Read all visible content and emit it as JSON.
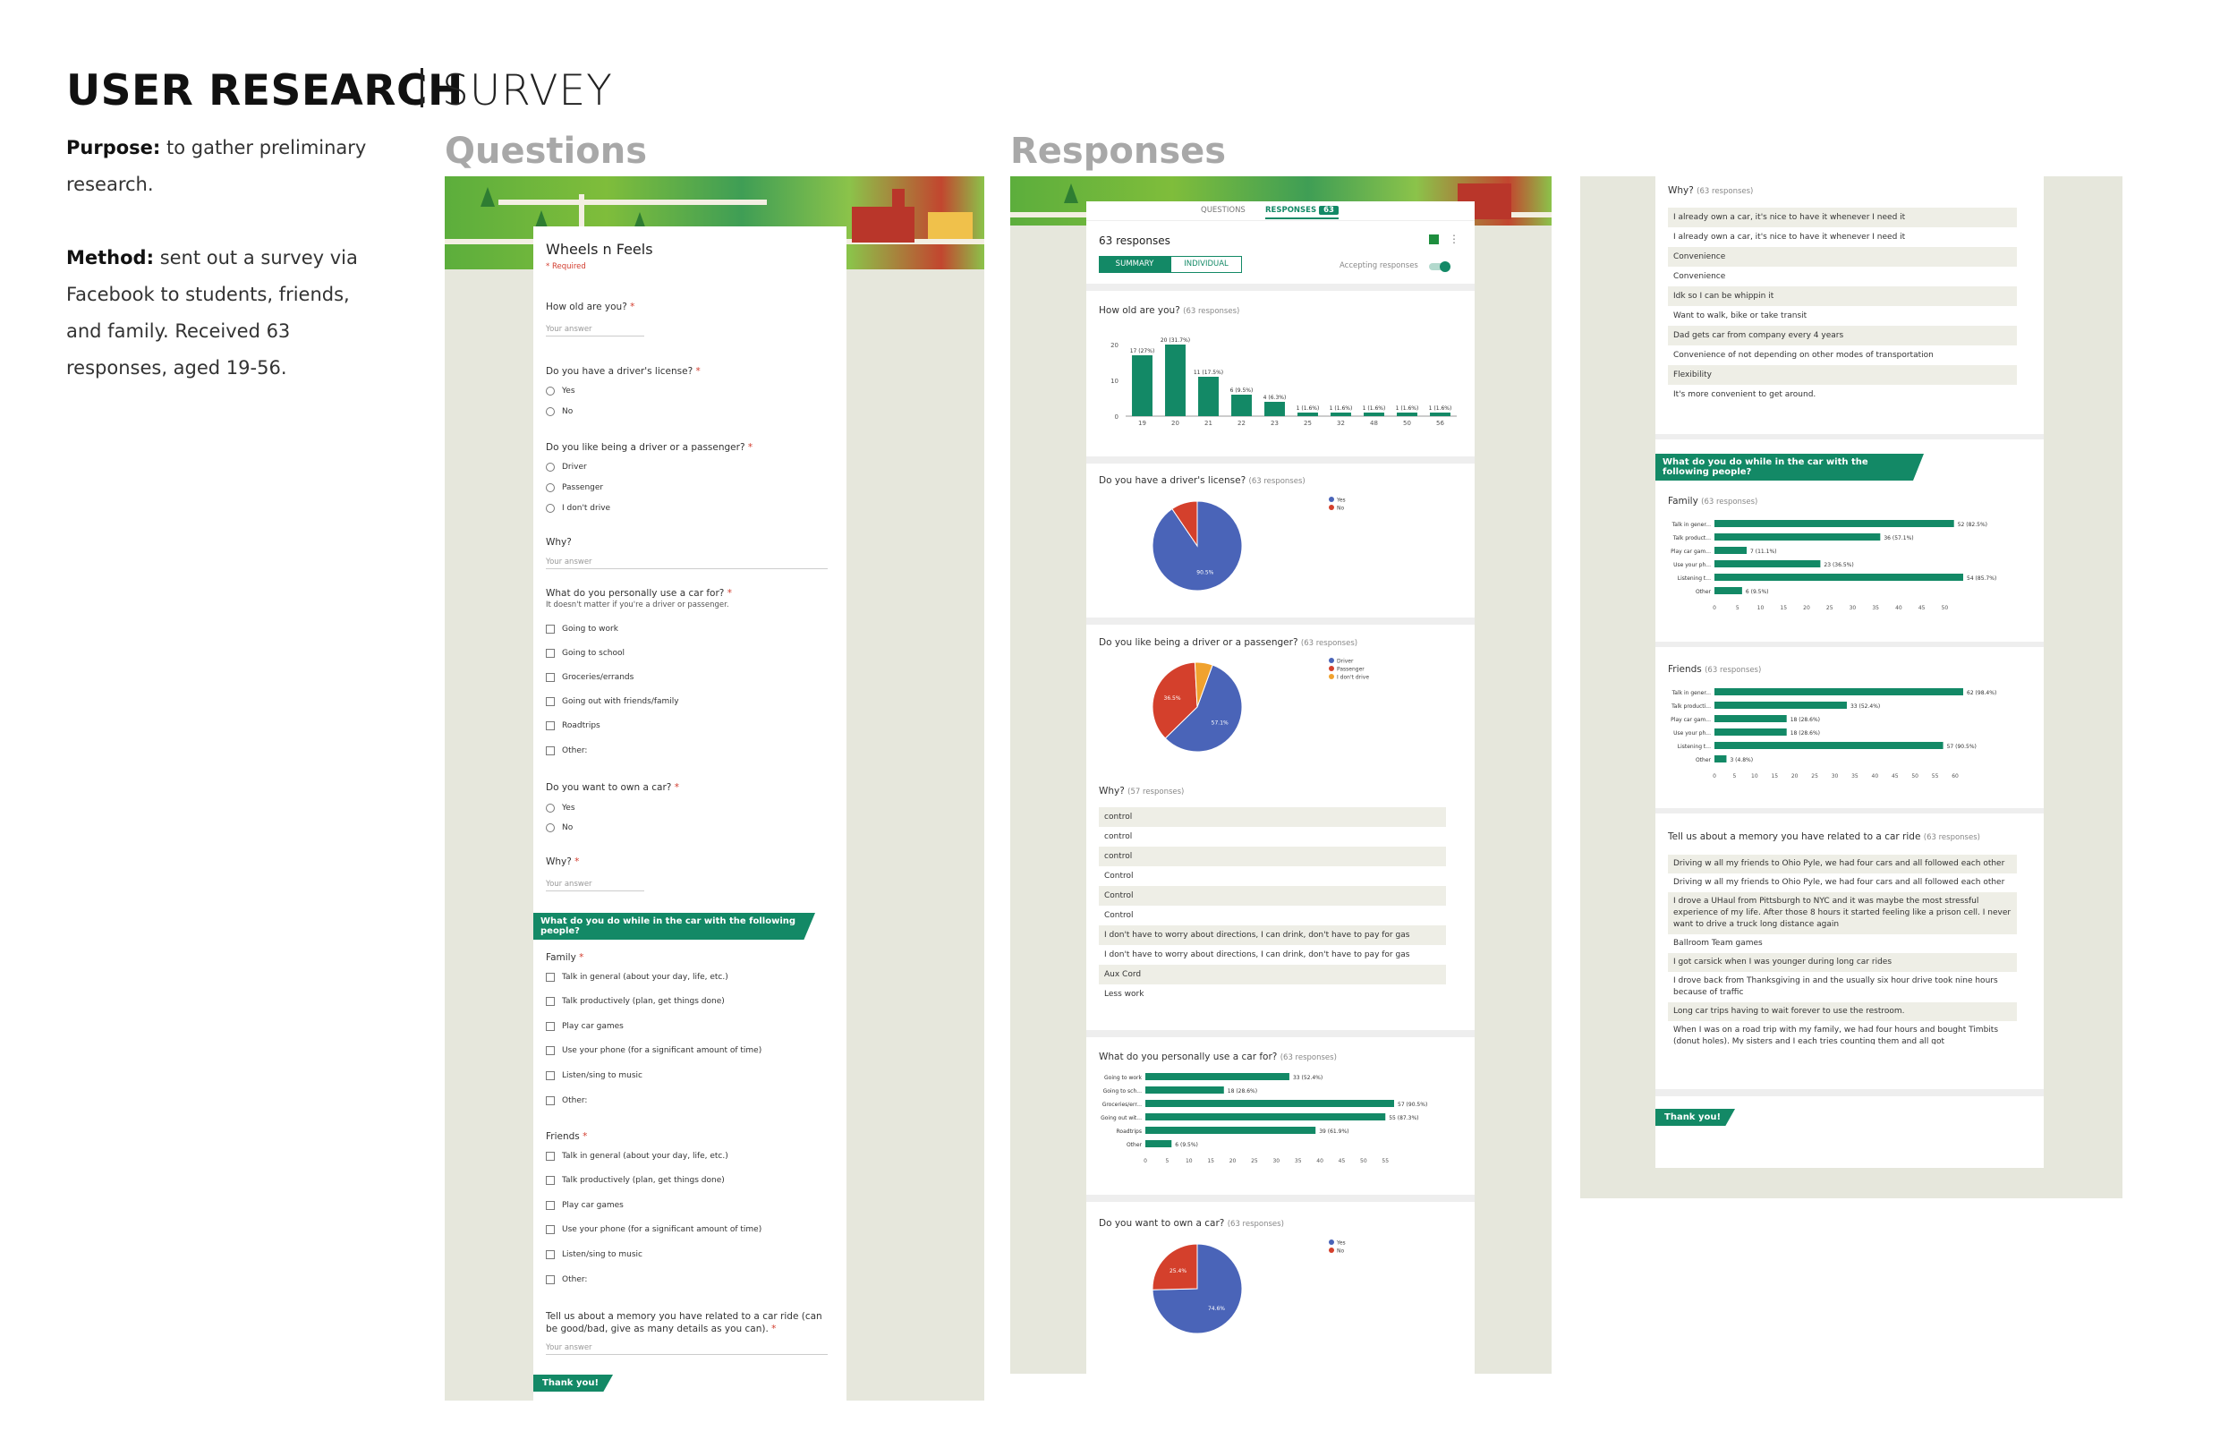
{
  "header": {
    "title": "USER RESEARCH",
    "subtitle": "SURVEY"
  },
  "intro": {
    "purpose_label": "Purpose:",
    "purpose_text": "to gather preliminary research.",
    "method_label": "Method:",
    "method_text": "sent out a survey via Facebook to students, friends, and family. Received 63 responses, aged 19-56."
  },
  "sections": {
    "questions": "Questions",
    "responses": "Responses"
  },
  "form": {
    "title": "Wheels n Feels",
    "required": "* Required",
    "your_answer": "Your answer",
    "q_age": "How old are you?",
    "q_license": "Do you have a driver's license?",
    "license_opts": [
      "Yes",
      "No"
    ],
    "q_driver": "Do you like being a driver or a passenger?",
    "driver_opts": [
      "Driver",
      "Passenger",
      "I don't drive"
    ],
    "q_why": "Why?",
    "q_use": "What do you personally use a car for?",
    "q_use_help": "It doesn't matter if you're a driver or passenger.",
    "use_opts": [
      "Going to work",
      "Going to school",
      "Groceries/errands",
      "Going out with friends/family",
      "Roadtrips",
      "Other:"
    ],
    "q_own": "Do you want to own a car?",
    "own_opts": [
      "Yes",
      "No"
    ],
    "q_why2": "Why?",
    "section_banner": "What do you do while in the car with the following people?",
    "family_label": "Family",
    "friends_label": "Friends",
    "activity_opts": [
      "Talk in general (about your day, life, etc.)",
      "Talk productively (plan, get things done)",
      "Play car games",
      "Use your phone (for a significant amount of time)",
      "Listen/sing to music",
      "Other:"
    ],
    "q_memory": "Tell us about a memory you have related to a car ride (can be good/bad, give as many details as you can).",
    "thank_you": "Thank you!"
  },
  "responses": {
    "tab_questions": "QUESTIONS",
    "tab_responses": "RESPONSES",
    "tab_count": "63",
    "count_label": "63 responses",
    "summary_btn": "SUMMARY",
    "individual_btn": "INDIVIDUAL",
    "accepting": "Accepting responses",
    "age_q": "How old are you?",
    "age_count": "(63 responses)",
    "license_q": "Do you have a driver's license?",
    "license_count": "(63 responses)",
    "driver_q": "Do you like being a driver or a passenger?",
    "driver_count": "(63 responses)",
    "why_q": "Why?",
    "why_count": "(57 responses)",
    "why_answers": [
      "control",
      "control",
      "control",
      "Control",
      "Control",
      "Control",
      "I don't have to worry about directions, I can drink, don't have to pay for gas",
      "I don't have to worry about directions, I can drink, don't have to pay for gas",
      "Aux Cord",
      "Less work"
    ],
    "use_q": "What do you personally use a car for?",
    "use_count": "(63 responses)",
    "own_q": "Do you want to own a car?",
    "own_count": "(63 responses)",
    "why2_q": "Why?",
    "why2_count": "(63 responses)",
    "why2_answers": [
      "I already own a car, it's nice to have it whenever I need it",
      "I already own a car, it's nice to have it whenever I need it",
      "Convenience",
      "Convenience",
      "Idk so I can be whippin it",
      "Want to walk, bike or take transit",
      "Dad gets car from company every 4 years",
      "Convenience of not depending on other modes of transportation",
      "Flexibility",
      "It's more convenient to get around."
    ],
    "section_banner": "What do you do while in the car with the following people?",
    "family_q": "Family",
    "family_count": "(63 responses)",
    "friends_q": "Friends",
    "friends_count": "(63 responses)",
    "memory_q": "Tell us about a memory you have related to a car ride",
    "memory_count": "(63 responses)",
    "memory_answers": [
      "Driving w all my friends to Ohio Pyle, we had four cars and all followed each other",
      "Driving w all my friends to Ohio Pyle, we had four cars and all followed each other",
      "I drove a UHaul from Pittsburgh to NYC and it was maybe the most stressful experience of my life. After those 8 hours it started feeling like a prison cell. I never want to drive a truck long distance again",
      "Ballroom Team games",
      "I got carsick when I was younger during long car rides",
      "I drove back from Thanksgiving in and the usually six hour drive took nine hours because of traffic",
      "Long car trips having to wait forever to use the restroom.",
      "When I was on a road trip with my family, we had four hours and bought Timbits (donut holes). My sisters and I each tries counting them and all got"
    ],
    "thank_you": "Thank you!"
  },
  "chart_data": [
    {
      "type": "bar",
      "title": "How old are you?",
      "categories": [
        "19",
        "20",
        "21",
        "22",
        "23",
        "25",
        "32",
        "48",
        "50",
        "56"
      ],
      "values": [
        17,
        20,
        11,
        6,
        4,
        1,
        1,
        1,
        1,
        1
      ],
      "labels": [
        "17 (27%)",
        "20 (31.7%)",
        "11 (17.5%)",
        "6 (9.5%)",
        "4 (6.3%)",
        "1 (1.6%)",
        "1 (1.6%)",
        "1 (1.6%)",
        "1 (1.6%)",
        "1 (1.6%)"
      ],
      "yticks": [
        "0",
        "10",
        "20"
      ],
      "ylim": [
        0,
        20
      ]
    },
    {
      "type": "pie",
      "title": "Do you have a driver's license?",
      "categories": [
        "Yes",
        "No"
      ],
      "values": [
        90.5,
        9.5
      ],
      "colors": [
        "#4a64b8",
        "#d4402c"
      ],
      "slice_labels": [
        "90.5%",
        ""
      ]
    },
    {
      "type": "pie",
      "title": "Do you like being a driver or a passenger?",
      "categories": [
        "Driver",
        "Passenger",
        "I don't drive"
      ],
      "values": [
        57.1,
        36.5,
        6.4
      ],
      "colors": [
        "#4a64b8",
        "#d4402c",
        "#f0a22e"
      ],
      "slice_labels": [
        "57.1%",
        "36.5%",
        ""
      ]
    },
    {
      "type": "bar",
      "orientation": "horizontal",
      "title": "What do you personally use a car for?",
      "categories": [
        "Going to work",
        "Going to sch...",
        "Groceries/err...",
        "Going out wit...",
        "Roadtrips",
        "Other"
      ],
      "values": [
        33,
        18,
        57,
        55,
        39,
        6
      ],
      "labels": [
        "33 (52.4%)",
        "18 (28.6%)",
        "57 (90.5%)",
        "55 (87.3%)",
        "39 (61.9%)",
        "6 (9.5%)"
      ],
      "xticks": [
        "0",
        "5",
        "10",
        "15",
        "20",
        "25",
        "30",
        "35",
        "40",
        "45",
        "50",
        "55"
      ],
      "xlim": [
        0,
        57
      ]
    },
    {
      "type": "pie",
      "title": "Do you want to own a car?",
      "categories": [
        "Yes",
        "No"
      ],
      "values": [
        74.6,
        25.4
      ],
      "colors": [
        "#4a64b8",
        "#d4402c"
      ],
      "slice_labels": [
        "74.6%",
        "25.4%"
      ]
    },
    {
      "type": "bar",
      "orientation": "horizontal",
      "title": "Family",
      "categories": [
        "Talk in gener...",
        "Talk product...",
        "Play car gam...",
        "Use your ph...",
        "Listening t...",
        "Other"
      ],
      "values": [
        52,
        36,
        7,
        23,
        54,
        6
      ],
      "labels": [
        "52 (82.5%)",
        "36 (57.1%)",
        "7 (11.1%)",
        "23 (36.5%)",
        "54 (85.7%)",
        "6 (9.5%)"
      ],
      "xticks": [
        "0",
        "5",
        "10",
        "15",
        "20",
        "25",
        "30",
        "35",
        "40",
        "45",
        "50"
      ],
      "xlim": [
        0,
        54
      ]
    },
    {
      "type": "bar",
      "orientation": "horizontal",
      "title": "Friends",
      "categories": [
        "Talk in gener...",
        "Talk producti...",
        "Play car gam...",
        "Use your ph...",
        "Listening t...",
        "Other"
      ],
      "values": [
        62,
        33,
        18,
        18,
        57,
        3
      ],
      "labels": [
        "62 (98.4%)",
        "33 (52.4%)",
        "18 (28.6%)",
        "18 (28.6%)",
        "57 (90.5%)",
        "3 (4.8%)"
      ],
      "xticks": [
        "0",
        "5",
        "10",
        "15",
        "20",
        "25",
        "30",
        "35",
        "40",
        "45",
        "50",
        "55",
        "60"
      ],
      "xlim": [
        0,
        62
      ]
    }
  ]
}
